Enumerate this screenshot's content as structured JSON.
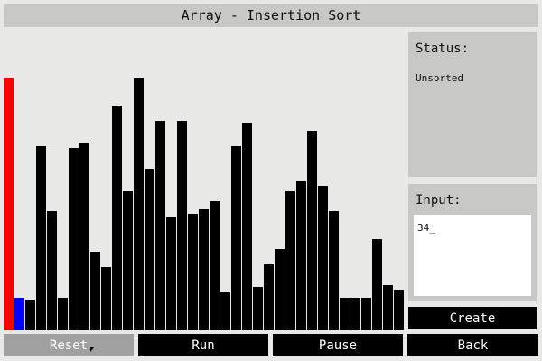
{
  "window": {
    "title": "Array - Insertion Sort"
  },
  "status": {
    "heading": "Status:",
    "value": "Unsorted"
  },
  "input": {
    "heading": "Input:",
    "value": "34_"
  },
  "buttons": {
    "create": "Create",
    "reset": "Reset",
    "run": "Run",
    "pause": "Pause",
    "back": "Back"
  },
  "colors": {
    "bar": "#000000",
    "active": "#ff0000",
    "key": "#0000ff",
    "panel": "#c8c8c6",
    "background": "#e8e8e6"
  },
  "array": {
    "max": 100,
    "values": [
      100,
      13,
      12,
      73,
      47,
      13,
      72,
      74,
      31,
      25,
      89,
      55,
      100,
      64,
      83,
      45,
      83,
      46,
      48,
      51,
      15,
      73,
      82,
      17,
      26,
      32,
      55,
      59,
      79,
      57,
      47,
      13,
      13,
      13,
      36,
      18,
      16
    ],
    "highlight": {
      "0": "active",
      "1": "key"
    }
  }
}
